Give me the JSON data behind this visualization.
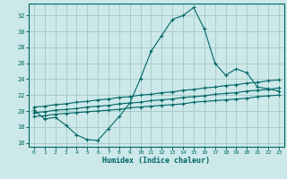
{
  "xlabel": "Humidex (Indice chaleur)",
  "bg_color": "#cce8e8",
  "grid_color": "#aacccc",
  "line_color": "#006666",
  "xlim": [
    -0.5,
    23.5
  ],
  "ylim": [
    15.5,
    33.5
  ],
  "yticks": [
    16,
    18,
    20,
    22,
    24,
    26,
    28,
    30,
    32
  ],
  "xticks": [
    0,
    1,
    2,
    3,
    4,
    5,
    6,
    7,
    8,
    9,
    10,
    11,
    12,
    13,
    14,
    15,
    16,
    17,
    18,
    19,
    20,
    21,
    22,
    23
  ],
  "main_x": [
    0,
    1,
    2,
    3,
    4,
    5,
    6,
    7,
    8,
    9,
    10,
    11,
    12,
    13,
    14,
    15,
    16,
    17,
    18,
    19,
    20,
    21,
    22,
    23
  ],
  "main_y": [
    20.1,
    19.0,
    19.2,
    18.2,
    17.0,
    16.4,
    16.3,
    17.8,
    19.3,
    21.0,
    24.1,
    27.5,
    29.5,
    31.5,
    32.0,
    33.0,
    30.3,
    26.0,
    24.5,
    25.3,
    24.8,
    23.0,
    22.8,
    22.5
  ],
  "line1_x": [
    0,
    1,
    2,
    3,
    4,
    5,
    6,
    7,
    8,
    9,
    10,
    11,
    12,
    13,
    14,
    15,
    16,
    17,
    18,
    19,
    20,
    21,
    22,
    23
  ],
  "line1_y": [
    19.3,
    19.4,
    19.6,
    19.7,
    19.8,
    19.9,
    20.0,
    20.1,
    20.2,
    20.4,
    20.5,
    20.6,
    20.7,
    20.8,
    20.9,
    21.1,
    21.2,
    21.3,
    21.4,
    21.5,
    21.6,
    21.8,
    21.9,
    22.0
  ],
  "line2_x": [
    0,
    1,
    2,
    3,
    4,
    5,
    6,
    7,
    8,
    9,
    10,
    11,
    12,
    13,
    14,
    15,
    16,
    17,
    18,
    19,
    20,
    21,
    22,
    23
  ],
  "line2_y": [
    19.8,
    19.9,
    20.1,
    20.2,
    20.3,
    20.5,
    20.6,
    20.7,
    20.9,
    21.0,
    21.1,
    21.3,
    21.4,
    21.5,
    21.7,
    21.8,
    21.9,
    22.1,
    22.2,
    22.3,
    22.5,
    22.6,
    22.7,
    22.9
  ],
  "line3_x": [
    0,
    1,
    2,
    3,
    4,
    5,
    6,
    7,
    8,
    9,
    10,
    11,
    12,
    13,
    14,
    15,
    16,
    17,
    18,
    19,
    20,
    21,
    22,
    23
  ],
  "line3_y": [
    20.5,
    20.6,
    20.8,
    20.9,
    21.1,
    21.2,
    21.4,
    21.5,
    21.7,
    21.8,
    22.0,
    22.1,
    22.3,
    22.4,
    22.6,
    22.7,
    22.9,
    23.0,
    23.2,
    23.3,
    23.5,
    23.6,
    23.8,
    23.9
  ]
}
